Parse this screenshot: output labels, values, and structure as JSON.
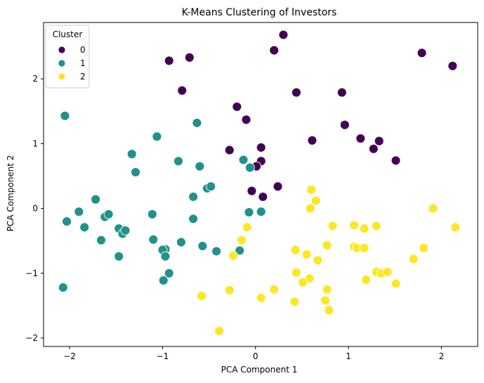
{
  "chart_data": {
    "type": "scatter",
    "title": "K-Means Clustering of Investors",
    "xlabel": "PCA Component 1",
    "ylabel": "PCA Component 2",
    "xlim": [
      -2.28,
      2.39
    ],
    "ylim": [
      -2.13,
      2.87
    ],
    "xticks": [
      -2,
      -1,
      0,
      1,
      2
    ],
    "yticks": [
      -2,
      -1,
      0,
      1,
      2
    ],
    "grid": false,
    "legend": {
      "title": "Cluster",
      "placement": "top-left",
      "entries": [
        "0",
        "1",
        "2"
      ]
    },
    "series": [
      {
        "name": "0",
        "color": "#440154",
        "points": [
          [
            -0.93,
            2.28
          ],
          [
            -0.71,
            2.33
          ],
          [
            -0.79,
            1.82
          ],
          [
            0.3,
            2.68
          ],
          [
            0.2,
            2.44
          ],
          [
            1.79,
            2.4
          ],
          [
            2.12,
            2.2
          ],
          [
            0.44,
            1.79
          ],
          [
            0.93,
            1.79
          ],
          [
            -0.2,
            1.57
          ],
          [
            -0.1,
            1.37
          ],
          [
            0.96,
            1.29
          ],
          [
            0.61,
            1.05
          ],
          [
            1.13,
            1.08
          ],
          [
            1.33,
            1.04
          ],
          [
            1.27,
            0.92
          ],
          [
            1.51,
            0.74
          ],
          [
            -0.28,
            0.9
          ],
          [
            0.06,
            0.94
          ],
          [
            0.06,
            0.73
          ],
          [
            0.01,
            0.65
          ],
          [
            -0.04,
            0.27
          ],
          [
            0.08,
            0.18
          ],
          [
            0.24,
            0.34
          ]
        ]
      },
      {
        "name": "1",
        "color": "#21918c",
        "points": [
          [
            -2.05,
            1.43
          ],
          [
            -1.06,
            1.11
          ],
          [
            -0.63,
            1.32
          ],
          [
            -1.33,
            0.84
          ],
          [
            -1.29,
            0.56
          ],
          [
            -0.83,
            0.73
          ],
          [
            -0.6,
            0.65
          ],
          [
            -0.13,
            0.75
          ],
          [
            -0.06,
            0.63
          ],
          [
            -0.52,
            0.31
          ],
          [
            -0.48,
            0.34
          ],
          [
            -0.67,
            0.18
          ],
          [
            -1.72,
            0.14
          ],
          [
            -1.9,
            -0.05
          ],
          [
            -2.03,
            -0.2
          ],
          [
            -1.84,
            -0.29
          ],
          [
            -1.62,
            -0.13
          ],
          [
            -1.58,
            -0.09
          ],
          [
            -1.11,
            -0.09
          ],
          [
            -0.67,
            -0.16
          ],
          [
            -0.07,
            -0.06
          ],
          [
            0.06,
            -0.05
          ],
          [
            -1.47,
            -0.31
          ],
          [
            -1.43,
            -0.39
          ],
          [
            -1.4,
            -0.34
          ],
          [
            -1.66,
            -0.49
          ],
          [
            -1.1,
            -0.48
          ],
          [
            -0.97,
            -0.63
          ],
          [
            -1.0,
            -0.64
          ],
          [
            -0.8,
            -0.52
          ],
          [
            -0.57,
            -0.58
          ],
          [
            -0.42,
            -0.66
          ],
          [
            -0.17,
            -0.65
          ],
          [
            -0.97,
            -0.74
          ],
          [
            -1.47,
            -0.74
          ],
          [
            -0.93,
            -1.0
          ],
          [
            -0.99,
            -1.11
          ],
          [
            -2.07,
            -1.22
          ]
        ]
      },
      {
        "name": "2",
        "color": "#fde725",
        "points": [
          [
            0.6,
            0.29
          ],
          [
            0.65,
            0.12
          ],
          [
            0.59,
            0.0
          ],
          [
            1.91,
            0.0
          ],
          [
            2.15,
            -0.29
          ],
          [
            -0.09,
            -0.29
          ],
          [
            0.83,
            -0.27
          ],
          [
            1.06,
            -0.26
          ],
          [
            1.3,
            -0.27
          ],
          [
            1.17,
            -0.31
          ],
          [
            -0.15,
            -0.49
          ],
          [
            0.77,
            -0.57
          ],
          [
            1.06,
            -0.59
          ],
          [
            1.09,
            -0.61
          ],
          [
            1.17,
            -0.61
          ],
          [
            1.81,
            -0.61
          ],
          [
            0.43,
            -0.64
          ],
          [
            0.55,
            -0.71
          ],
          [
            0.67,
            -0.8
          ],
          [
            1.7,
            -0.78
          ],
          [
            -0.24,
            -0.73
          ],
          [
            0.44,
            -0.99
          ],
          [
            1.3,
            -0.98
          ],
          [
            1.35,
            -1.0
          ],
          [
            1.42,
            -0.98
          ],
          [
            0.58,
            -1.08
          ],
          [
            0.51,
            -1.14
          ],
          [
            1.19,
            -1.1
          ],
          [
            1.51,
            -1.16
          ],
          [
            0.2,
            -1.25
          ],
          [
            -0.28,
            -1.26
          ],
          [
            0.77,
            -1.25
          ],
          [
            -0.58,
            -1.35
          ],
          [
            0.06,
            -1.38
          ],
          [
            0.42,
            -1.44
          ],
          [
            0.75,
            -1.42
          ],
          [
            0.79,
            -1.57
          ],
          [
            -0.39,
            -1.89
          ]
        ]
      }
    ]
  }
}
